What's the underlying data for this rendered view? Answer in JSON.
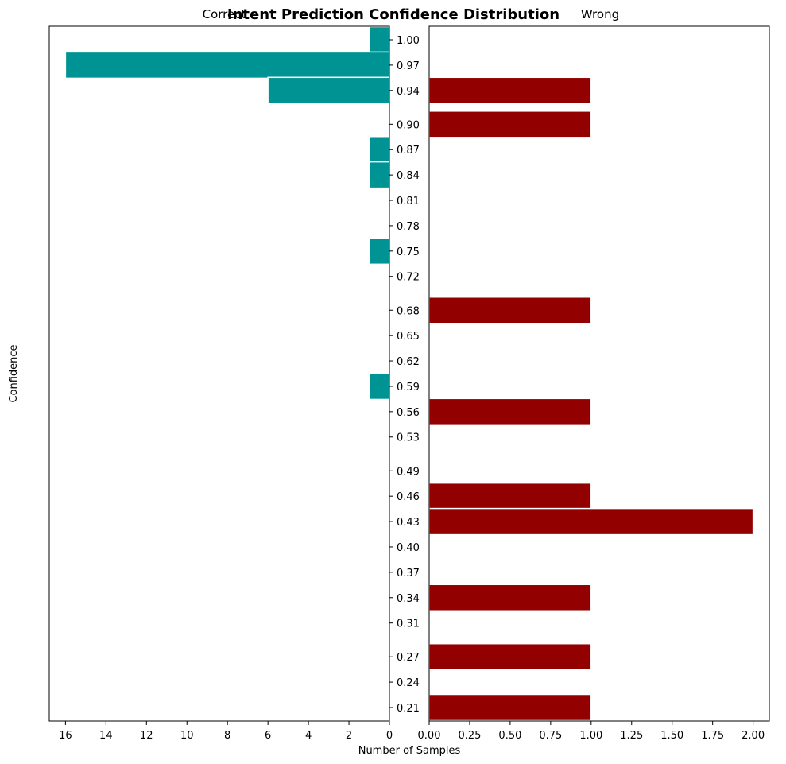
{
  "chart_data": {
    "type": "bar",
    "orientation": "horizontal",
    "title": "Intent Prediction Confidence Distribution",
    "ylabel": "Confidence",
    "xlabel": "Number of Samples",
    "colors": {
      "correct": "#009393",
      "wrong": "#930000",
      "edge": "#ffffff"
    },
    "confidence_ticks": [
      "1.00",
      "0.97",
      "0.94",
      "0.90",
      "0.87",
      "0.84",
      "0.81",
      "0.78",
      "0.75",
      "0.72",
      "0.68",
      "0.65",
      "0.62",
      "0.59",
      "0.56",
      "0.53",
      "0.49",
      "0.46",
      "0.43",
      "0.40",
      "0.37",
      "0.34",
      "0.31",
      "0.27",
      "0.24",
      "0.21"
    ],
    "panels": {
      "correct": {
        "title": "Correct",
        "xlim": [
          16.8,
          0
        ],
        "xticks": [
          "16",
          "14",
          "12",
          "10",
          "8",
          "6",
          "4",
          "2",
          "0"
        ],
        "bars": [
          {
            "confidence": 1.0,
            "count": 1
          },
          {
            "confidence": 0.97,
            "count": 16
          },
          {
            "confidence": 0.94,
            "count": 6
          },
          {
            "confidence": 0.87,
            "count": 1
          },
          {
            "confidence": 0.84,
            "count": 1
          },
          {
            "confidence": 0.75,
            "count": 1
          },
          {
            "confidence": 0.59,
            "count": 1
          }
        ]
      },
      "wrong": {
        "title": "Wrong",
        "xlim": [
          0,
          2.1
        ],
        "xticks": [
          "0.00",
          "0.25",
          "0.50",
          "0.75",
          "1.00",
          "1.25",
          "1.50",
          "1.75",
          "2.00"
        ],
        "bars": [
          {
            "confidence": 0.94,
            "count": 1
          },
          {
            "confidence": 0.9,
            "count": 1
          },
          {
            "confidence": 0.68,
            "count": 1
          },
          {
            "confidence": 0.56,
            "count": 1
          },
          {
            "confidence": 0.46,
            "count": 1
          },
          {
            "confidence": 0.43,
            "count": 2
          },
          {
            "confidence": 0.34,
            "count": 1
          },
          {
            "confidence": 0.27,
            "count": 1
          },
          {
            "confidence": 0.21,
            "count": 1
          }
        ]
      }
    }
  }
}
